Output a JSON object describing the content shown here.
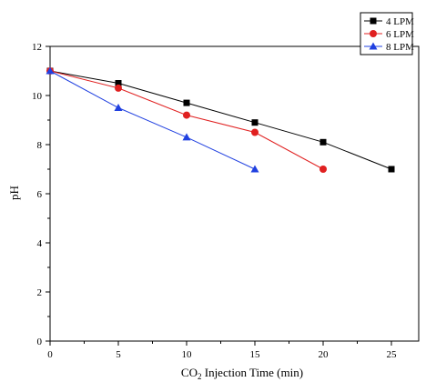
{
  "chart_data": {
    "type": "line",
    "title": "",
    "xlabel": "CO2 Injection Time (min)",
    "ylabel": "pH",
    "xlim": [
      0,
      27
    ],
    "ylim": [
      0,
      12
    ],
    "xticks": [
      0,
      5,
      10,
      15,
      20,
      25
    ],
    "yticks": [
      0,
      2,
      4,
      6,
      8,
      10,
      12
    ],
    "grid": false,
    "legend_position": "top-right",
    "series": [
      {
        "name": "4 LPM",
        "color": "#000000",
        "marker": "square",
        "x": [
          0,
          5,
          10,
          15,
          20,
          25
        ],
        "y": [
          11.0,
          10.5,
          9.7,
          8.9,
          8.1,
          7.0
        ]
      },
      {
        "name": "6 LPM",
        "color": "#e02020",
        "marker": "circle",
        "x": [
          0,
          5,
          10,
          15,
          20
        ],
        "y": [
          11.0,
          10.3,
          9.2,
          8.5,
          7.0
        ]
      },
      {
        "name": "8 LPM",
        "color": "#2040e0",
        "marker": "triangle",
        "x": [
          0,
          5,
          10,
          15
        ],
        "y": [
          11.0,
          9.5,
          8.3,
          7.0
        ]
      }
    ]
  }
}
